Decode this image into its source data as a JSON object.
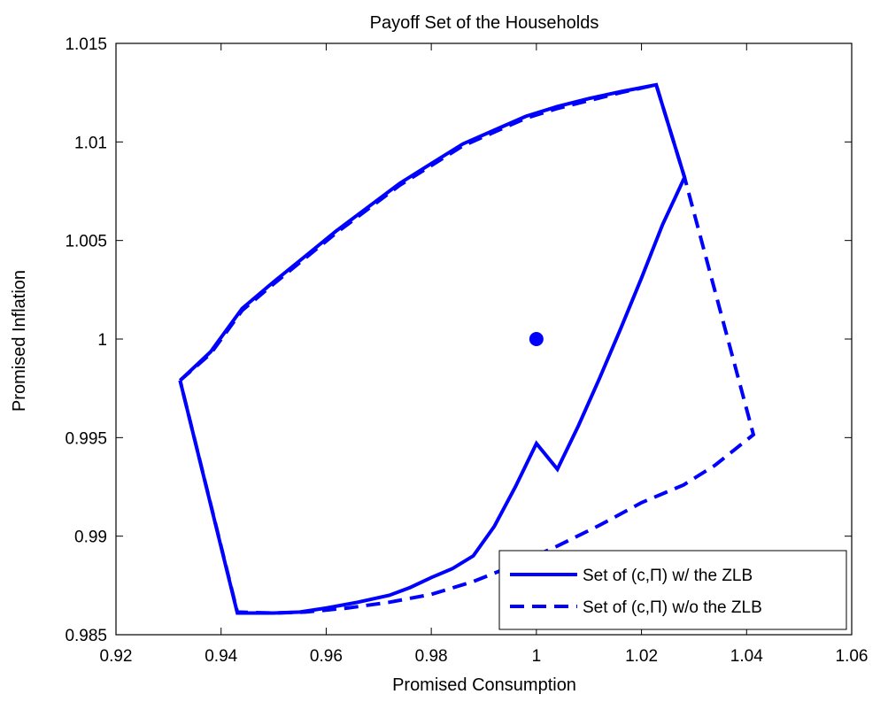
{
  "chart_data": {
    "type": "line",
    "title": "Payoff Set of the Households",
    "xlabel": "Promised Consumption",
    "ylabel": "Promised Inflation",
    "xlim": [
      0.92,
      1.06
    ],
    "ylim": [
      0.985,
      1.015
    ],
    "xticks": [
      "0.92",
      "0.94",
      "0.96",
      "0.98",
      "1",
      "1.02",
      "1.04",
      "1.06"
    ],
    "yticks": [
      "0.985",
      "0.99",
      "0.995",
      "1",
      "1.005",
      "1.01",
      "1.015"
    ],
    "xtick_values": [
      0.92,
      0.94,
      0.96,
      0.98,
      1.0,
      1.02,
      1.04,
      1.06
    ],
    "ytick_values": [
      0.985,
      0.99,
      0.995,
      1.0,
      1.005,
      1.01,
      1.015
    ],
    "grid": false,
    "legend_position": "bottom-right",
    "series": [
      {
        "name": "Set of (c,Π) w/ the ZLB",
        "style": "solid",
        "color": "#0000ff",
        "x": [
          0.9322,
          0.938,
          0.944,
          0.95,
          0.956,
          0.962,
          0.968,
          0.974,
          0.98,
          0.986,
          0.992,
          0.998,
          1.004,
          1.01,
          1.016,
          1.0228,
          1.0282,
          1.024,
          1.02,
          1.016,
          1.012,
          1.008,
          1.004,
          1.0,
          0.996,
          0.992,
          0.988,
          0.984,
          0.98,
          0.976,
          0.972,
          0.966,
          0.96,
          0.955,
          0.95,
          0.9431,
          0.9322
        ],
        "y": [
          0.9979,
          0.99935,
          1.00155,
          1.0029,
          1.0042,
          1.0055,
          1.0067,
          1.0079,
          1.0089,
          1.0099,
          1.0106,
          1.0113,
          1.0118,
          1.0122,
          1.01255,
          1.0129,
          1.0082,
          1.0058,
          1.0031,
          1.0005,
          0.998,
          0.9956,
          0.9934,
          0.9947,
          0.9925,
          0.9905,
          0.989,
          0.98835,
          0.9879,
          0.9874,
          0.987,
          0.98665,
          0.98635,
          0.98615,
          0.9861,
          0.9861,
          0.9979
        ]
      },
      {
        "name": "Set of (c,Π) w/o the ZLB",
        "style": "dashed",
        "color": "#0000ff",
        "x": [
          0.9322,
          0.938,
          0.944,
          0.95,
          0.956,
          0.962,
          0.968,
          0.974,
          0.98,
          0.986,
          0.992,
          0.998,
          1.004,
          1.01,
          1.016,
          1.0228,
          1.0282,
          1.0413,
          1.034,
          1.028,
          1.02,
          1.012,
          1.004,
          0.996,
          0.988,
          0.98,
          0.972,
          0.964,
          0.956,
          0.95,
          0.9431,
          0.9322
        ],
        "y": [
          0.9979,
          0.99925,
          1.00145,
          1.0028,
          1.0041,
          1.0054,
          1.0066,
          1.0078,
          1.0088,
          1.0098,
          1.0105,
          1.0112,
          1.0117,
          1.0121,
          1.0125,
          1.0129,
          1.0082,
          0.99515,
          0.9936,
          0.9926,
          0.9917,
          0.99055,
          0.9895,
          0.98855,
          0.9877,
          0.98705,
          0.98665,
          0.98635,
          0.98615,
          0.9861,
          0.98615,
          0.9979
        ]
      },
      {
        "name": "",
        "style": "marker",
        "color": "#0000ff",
        "x": [
          1.0
        ],
        "y": [
          1.0
        ]
      }
    ]
  }
}
